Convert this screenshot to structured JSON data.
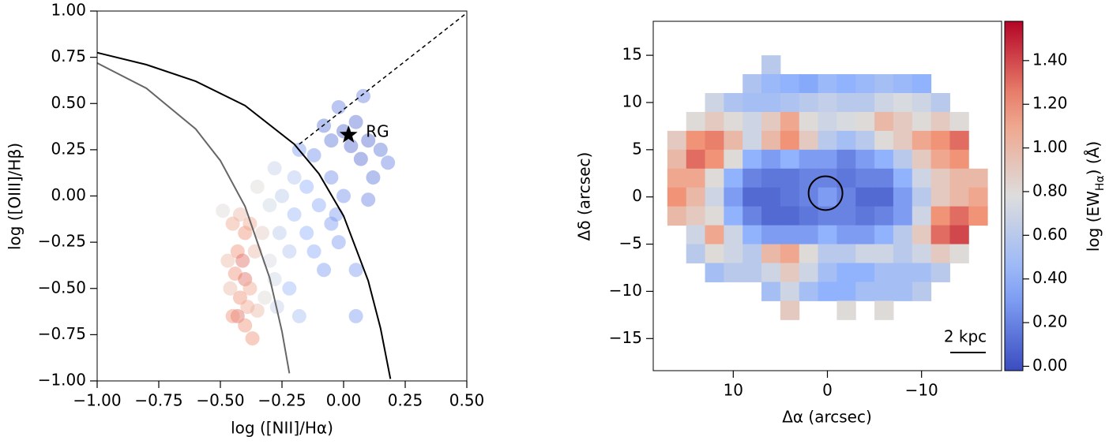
{
  "chart_data": [
    {
      "type": "scatter",
      "x_label": "log ([NII]/Hα)",
      "y_label": "log ([OIII]/Hβ)",
      "xlim": [
        -1,
        0.5
      ],
      "ylim": [
        -1,
        1
      ],
      "xticks": [
        {
          "value": -1,
          "label": "−1.00"
        },
        {
          "value": -0.75,
          "label": "−0.75"
        },
        {
          "value": -0.5,
          "label": "−0.50"
        },
        {
          "value": -0.25,
          "label": "−0.25"
        },
        {
          "value": 0,
          "label": "0.00"
        },
        0.25,
        {
          "value": 0.5,
          "label": "0.50"
        }
      ],
      "yticks": [
        {
          "value": -1,
          "label": "−1.00"
        },
        {
          "value": -0.75,
          "label": "−0.75"
        },
        {
          "value": -0.5,
          "label": "−0.50"
        },
        {
          "value": -0.25,
          "label": "−0.25"
        },
        {
          "value": 0,
          "label": "0.00"
        },
        0.25,
        {
          "value": 0.5,
          "label": "0.50"
        },
        0.75,
        {
          "value": 1,
          "label": "1.00"
        }
      ],
      "x": [
        -0.45,
        -0.42,
        -0.4,
        -0.43,
        -0.41,
        -0.44,
        -0.4,
        -0.42,
        -0.39,
        -0.43,
        -0.4,
        -0.37,
        -0.45,
        -0.38,
        -0.46,
        -0.47,
        -0.36,
        -0.38,
        -0.49,
        -0.35,
        -0.33,
        -0.3,
        -0.28,
        -0.32,
        -0.27,
        -0.3,
        -0.26,
        -0.22,
        -0.25,
        -0.28,
        -0.35,
        -0.2,
        -0.2,
        -0.15,
        -0.12,
        -0.1,
        -0.05,
        -0.08,
        -0.15,
        -0.18,
        -0.12,
        -0.05,
        0.0,
        -0.02,
        -0.22,
        -0.18,
        0.05,
        0.05,
        -0.03,
        -0.05,
        0.0,
        0.05,
        -0.02,
        0.08,
        0.1,
        0.15,
        0.12,
        0.18,
        0.07,
        0.03,
        -0.08,
        0.1
      ],
      "y": [
        -0.15,
        -0.1,
        -0.2,
        -0.3,
        -0.35,
        -0.42,
        -0.45,
        -0.55,
        -0.6,
        -0.65,
        -0.7,
        -0.77,
        -0.65,
        -0.5,
        -0.5,
        -0.35,
        -0.3,
        -0.15,
        -0.08,
        -0.62,
        -0.2,
        -0.35,
        -0.45,
        -0.55,
        -0.6,
        -0.05,
        -0.2,
        -0.3,
        0.0,
        0.15,
        0.05,
        0.1,
        -0.1,
        -0.2,
        -0.3,
        -0.05,
        -0.15,
        -0.4,
        0.05,
        0.25,
        0.22,
        0.1,
        0.0,
        -0.25,
        -0.5,
        -0.65,
        -0.65,
        -0.4,
        -0.1,
        0.3,
        0.35,
        0.4,
        0.48,
        0.54,
        0.3,
        0.25,
        0.1,
        0.18,
        0.2,
        0.27,
        0.38,
        -0.02
      ],
      "c": [
        1.1,
        1.0,
        1.2,
        1.2,
        1.3,
        1.2,
        1.3,
        1.2,
        1.1,
        1.3,
        1.2,
        1.2,
        1.2,
        1.1,
        1.0,
        1.0,
        1.0,
        1.1,
        0.8,
        1.0,
        0.9,
        0.75,
        0.7,
        0.8,
        0.65,
        0.7,
        0.6,
        0.55,
        0.6,
        0.65,
        0.8,
        0.55,
        0.45,
        0.4,
        0.35,
        0.35,
        0.3,
        0.3,
        0.4,
        0.3,
        0.25,
        0.25,
        0.25,
        0.3,
        0.45,
        0.5,
        0.3,
        0.3,
        0.3,
        0.15,
        0.1,
        0.12,
        0.2,
        0.2,
        0.1,
        0.15,
        0.15,
        0.2,
        0.1,
        0.1,
        0.15,
        0.2
      ],
      "lines": [
        {
          "color": "#000000",
          "style": "solid",
          "x": [
            -1,
            -0.8,
            -0.6,
            -0.4,
            -0.2,
            -0.1,
            0,
            0.1,
            0.15,
            0.19
          ],
          "y": [
            0.775,
            0.71,
            0.62,
            0.489,
            0.28,
            0.12,
            -0.108,
            -0.459,
            -0.716,
            -0.989
          ]
        },
        {
          "color": "#666666",
          "style": "solid",
          "x": [
            -1,
            -0.8,
            -0.6,
            -0.5,
            -0.4,
            -0.3,
            -0.25,
            -0.22
          ],
          "y": [
            0.719,
            0.582,
            0.362,
            0.191,
            -0.056,
            -0.443,
            -0.733,
            -0.959
          ]
        },
        {
          "color": "#000000",
          "style": "dashed",
          "x": [
            -0.18,
            0.5
          ],
          "y": [
            0.28,
            0.99
          ]
        }
      ],
      "annotation": {
        "text": "RG",
        "x": 0.02,
        "y": 0.33
      }
    },
    {
      "type": "heatmap",
      "x_label": "Δα (arcsec)",
      "y_label": "Δδ (arcsec)",
      "colorbar_label": [
        "log (EW",
        "Hα",
        ") (Å)"
      ],
      "scale_bar": "2 kpc",
      "xlim": [
        18.5,
        -18.5
      ],
      "ylim": [
        -18.4,
        18.6
      ],
      "xticks": [
        10,
        0,
        {
          "value": -10,
          "label": "−10"
        }
      ],
      "yticks": [
        15,
        10,
        5,
        0,
        {
          "value": -5,
          "label": "−5"
        },
        {
          "value": -10,
          "label": "−10"
        },
        {
          "value": -15,
          "label": "−15"
        }
      ],
      "clim": [
        -0.02,
        1.58
      ],
      "cticks": [
        {
          "value": 0,
          "label": "0.00"
        },
        {
          "value": 0.2,
          "label": "0.20"
        },
        {
          "value": 0.4,
          "label": "0.40"
        },
        {
          "value": 0.6,
          "label": "0.60"
        },
        {
          "value": 0.8,
          "label": "0.80"
        },
        {
          "value": 1,
          "label": "1.00"
        },
        {
          "value": 1.2,
          "label": "1.20"
        },
        {
          "value": 1.4,
          "label": "1.40"
        }
      ],
      "aperture": {
        "x": 0.2,
        "y": 0.4,
        "r": 1.8
      },
      "x": [
        16,
        14,
        12,
        10,
        8,
        6,
        4,
        2,
        0,
        -2,
        -4,
        -6,
        -8,
        -10,
        -12,
        -14,
        -16
      ],
      "y": [
        14,
        12,
        10,
        8,
        6,
        4,
        2,
        0,
        -2,
        -4,
        -6,
        -8,
        -10,
        -12
      ],
      "z": [
        [
          null,
          null,
          null,
          null,
          null,
          0.6,
          null,
          null,
          null,
          null,
          null,
          null,
          null,
          null,
          null,
          null,
          null
        ],
        [
          null,
          null,
          null,
          null,
          0.55,
          0.45,
          0.4,
          0.35,
          0.45,
          0.4,
          0.45,
          0.5,
          0.45,
          0.4,
          null,
          null,
          null
        ],
        [
          null,
          null,
          0.7,
          0.55,
          0.5,
          0.5,
          0.55,
          0.6,
          0.65,
          0.6,
          0.6,
          0.7,
          0.75,
          0.7,
          0.6,
          null,
          null
        ],
        [
          null,
          0.8,
          0.9,
          0.8,
          0.7,
          0.9,
          1.1,
          0.8,
          0.7,
          0.75,
          0.8,
          1.0,
          0.9,
          0.8,
          0.9,
          0.8,
          null
        ],
        [
          0.9,
          1.2,
          1.25,
          1.0,
          0.7,
          1.0,
          1.2,
          0.9,
          0.6,
          0.5,
          0.6,
          0.8,
          0.9,
          1.1,
          1.2,
          1.3,
          null
        ],
        [
          1.0,
          1.3,
          1.2,
          0.8,
          0.4,
          0.3,
          0.4,
          0.3,
          0.3,
          0.2,
          0.3,
          0.4,
          0.6,
          0.9,
          1.1,
          1.2,
          null
        ],
        [
          1.1,
          1.1,
          0.8,
          0.4,
          0.2,
          0.15,
          0.15,
          0.2,
          0.2,
          0.15,
          0.2,
          0.2,
          0.4,
          0.7,
          0.9,
          1.0,
          1.0
        ],
        [
          1.2,
          1.0,
          0.7,
          0.3,
          0.1,
          0.1,
          0.15,
          0.2,
          0.3,
          0.2,
          0.1,
          0.1,
          0.3,
          0.6,
          0.9,
          1.0,
          1.1
        ],
        [
          1.0,
          0.9,
          0.8,
          0.4,
          0.2,
          0.1,
          0.1,
          0.15,
          0.2,
          0.2,
          0.15,
          0.2,
          0.3,
          0.7,
          1.2,
          1.3,
          1.2
        ],
        [
          null,
          0.7,
          1.1,
          0.7,
          0.4,
          0.3,
          0.3,
          0.3,
          0.4,
          0.3,
          0.3,
          0.4,
          0.6,
          0.9,
          1.3,
          1.4,
          null
        ],
        [
          null,
          0.6,
          0.8,
          0.7,
          0.6,
          1.0,
          1.1,
          0.8,
          0.6,
          0.6,
          0.7,
          0.7,
          0.6,
          0.7,
          0.9,
          0.8,
          null
        ],
        [
          null,
          null,
          0.5,
          0.6,
          0.6,
          0.7,
          0.9,
          0.7,
          0.5,
          0.4,
          0.4,
          0.5,
          0.5,
          0.5,
          0.6,
          null,
          null
        ],
        [
          null,
          null,
          null,
          null,
          null,
          0.5,
          0.7,
          0.5,
          0.4,
          0.4,
          0.5,
          0.5,
          0.5,
          0.6,
          null,
          null,
          null
        ],
        [
          null,
          null,
          null,
          null,
          null,
          null,
          0.9,
          null,
          null,
          0.8,
          null,
          0.8,
          null,
          null,
          null,
          null,
          null
        ]
      ]
    }
  ]
}
